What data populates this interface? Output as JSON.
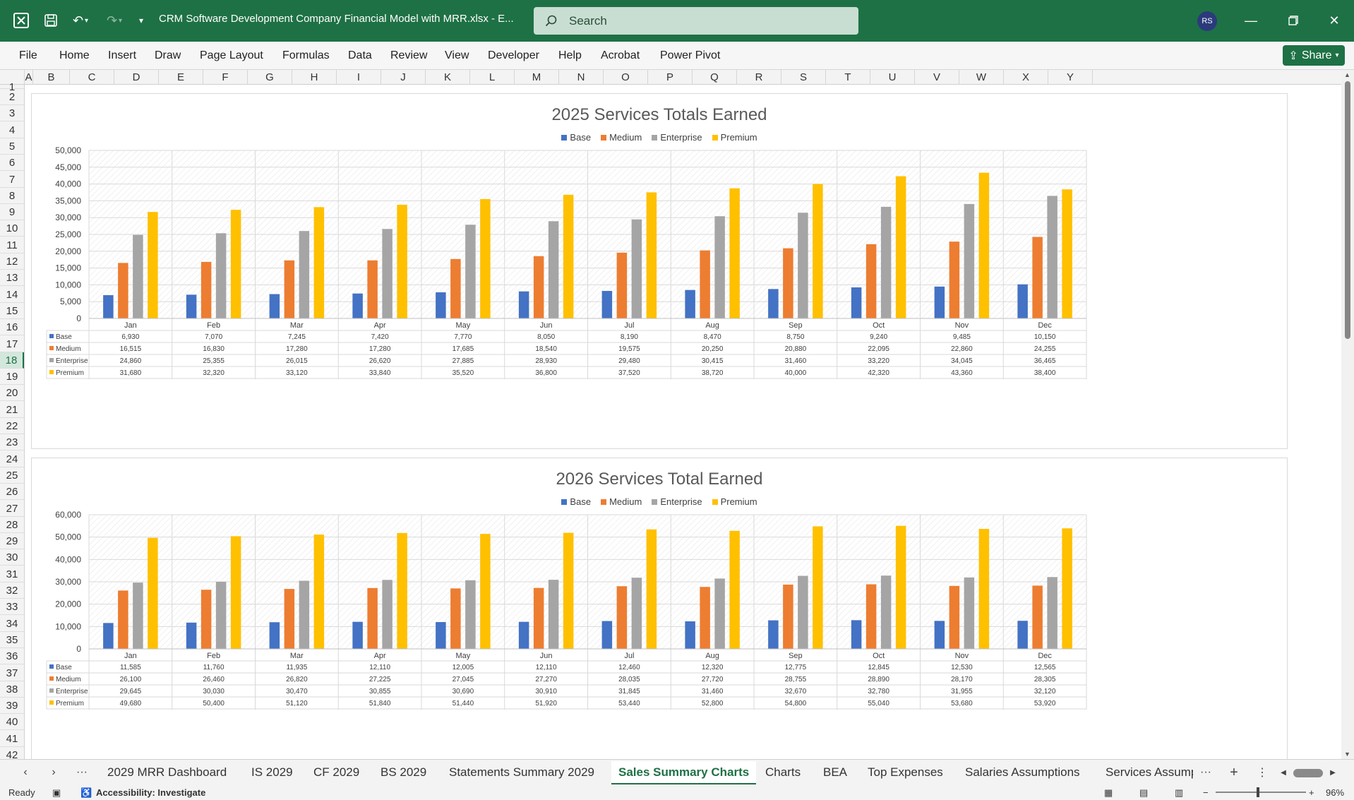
{
  "titlebar": {
    "document_title": "CRM Software Development Company Financial Model with MRR.xlsx  -  E...",
    "search_placeholder": "Search",
    "user_initials": "RS"
  },
  "ribbon": {
    "tabs": [
      "File",
      "Home",
      "Insert",
      "Draw",
      "Page Layout",
      "Formulas",
      "Data",
      "Review",
      "View",
      "Developer",
      "Help",
      "Acrobat",
      "Power Pivot"
    ],
    "share_label": "Share"
  },
  "grid": {
    "columns": [
      "A",
      "B",
      "C",
      "D",
      "E",
      "F",
      "G",
      "H",
      "I",
      "J",
      "K",
      "L",
      "M",
      "N",
      "O",
      "P",
      "Q",
      "R",
      "S",
      "T",
      "U",
      "V",
      "W",
      "X",
      "Y"
    ],
    "rows": [
      "1",
      "2",
      "3",
      "4",
      "5",
      "6",
      "7",
      "8",
      "9",
      "10",
      "11",
      "12",
      "13",
      "14",
      "15",
      "16",
      "17",
      "18",
      "19",
      "20",
      "21",
      "22",
      "23",
      "24",
      "25",
      "26",
      "27",
      "28",
      "29",
      "30",
      "31",
      "32",
      "33",
      "34",
      "35",
      "36",
      "37",
      "38",
      "39",
      "40",
      "41",
      "42"
    ],
    "selected_row": "18"
  },
  "colors": {
    "excel_green": "#1e7145",
    "base": "#4472c4",
    "medium": "#ed7d31",
    "enterprise": "#a5a5a5",
    "premium": "#ffc000"
  },
  "chart_data": [
    {
      "type": "bar",
      "title": "2025 Services Totals Earned",
      "categories": [
        "Jan",
        "Feb",
        "Mar",
        "Apr",
        "May",
        "Jun",
        "Jul",
        "Aug",
        "Sep",
        "Oct",
        "Nov",
        "Dec"
      ],
      "ylim": [
        0,
        50000
      ],
      "yticks": [
        "0",
        "5,000",
        "10,000",
        "15,000",
        "20,000",
        "25,000",
        "30,000",
        "35,000",
        "40,000",
        "45,000",
        "50,000"
      ],
      "legend_position": "top",
      "series": [
        {
          "name": "Base",
          "values": [
            6930,
            7070,
            7245,
            7420,
            7770,
            8050,
            8190,
            8470,
            8750,
            9240,
            9485,
            10150
          ],
          "labels": [
            "6,930",
            "7,070",
            "7,245",
            "7,420",
            "7,770",
            "8,050",
            "8,190",
            "8,470",
            "8,750",
            "9,240",
            "9,485",
            "10,150"
          ]
        },
        {
          "name": "Medium",
          "values": [
            16515,
            16830,
            17280,
            17280,
            17685,
            18540,
            19575,
            20250,
            20880,
            22095,
            22860,
            24255
          ],
          "labels": [
            "16,515",
            "16,830",
            "17,280",
            "17,280",
            "17,685",
            "18,540",
            "19,575",
            "20,250",
            "20,880",
            "22,095",
            "22,860",
            "24,255"
          ]
        },
        {
          "name": "Enterprise",
          "values": [
            24860,
            25355,
            26015,
            26620,
            27885,
            28930,
            29480,
            30415,
            31460,
            33220,
            34045,
            36465
          ],
          "labels": [
            "24,860",
            "25,355",
            "26,015",
            "26,620",
            "27,885",
            "28,930",
            "29,480",
            "30,415",
            "31,460",
            "33,220",
            "34,045",
            "36,465"
          ]
        },
        {
          "name": "Premium",
          "values": [
            31680,
            32320,
            33120,
            33840,
            35520,
            36800,
            37520,
            38720,
            40000,
            42320,
            43360,
            38400
          ],
          "labels": [
            "31,680",
            "32,320",
            "33,120",
            "33,840",
            "35,520",
            "36,800",
            "37,520",
            "38,720",
            "40,000",
            "42,320",
            "43,360",
            "38,400"
          ]
        }
      ]
    },
    {
      "type": "bar",
      "title": "2026 Services Total Earned",
      "categories": [
        "Jan",
        "Feb",
        "Mar",
        "Apr",
        "May",
        "Jun",
        "Jul",
        "Aug",
        "Sep",
        "Oct",
        "Nov",
        "Dec"
      ],
      "ylim": [
        0,
        60000
      ],
      "yticks": [
        "0",
        "10,000",
        "20,000",
        "30,000",
        "40,000",
        "50,000",
        "60,000"
      ],
      "legend_position": "top",
      "series": [
        {
          "name": "Base",
          "values": [
            11585,
            11760,
            11935,
            12110,
            12005,
            12110,
            12460,
            12320,
            12775,
            12845,
            12530,
            12565
          ],
          "labels": [
            "11,585",
            "11,760",
            "11,935",
            "12,110",
            "12,005",
            "12,110",
            "12,460",
            "12,320",
            "12,775",
            "12,845",
            "12,530",
            "12,565"
          ]
        },
        {
          "name": "Medium",
          "values": [
            26100,
            26460,
            26820,
            27225,
            27045,
            27270,
            28035,
            27720,
            28755,
            28890,
            28170,
            28305
          ],
          "labels": [
            "26,100",
            "26,460",
            "26,820",
            "27,225",
            "27,045",
            "27,270",
            "28,035",
            "27,720",
            "28,755",
            "28,890",
            "28,170",
            "28,305"
          ]
        },
        {
          "name": "Enterprise",
          "values": [
            29645,
            30030,
            30470,
            30855,
            30690,
            30910,
            31845,
            31460,
            32670,
            32780,
            31955,
            32120
          ],
          "labels": [
            "29,645",
            "30,030",
            "30,470",
            "30,855",
            "30,690",
            "30,910",
            "31,845",
            "31,460",
            "32,670",
            "32,780",
            "31,955",
            "32,120"
          ]
        },
        {
          "name": "Premium",
          "values": [
            49680,
            50400,
            51120,
            51840,
            51440,
            51920,
            53440,
            52800,
            54800,
            55040,
            53680,
            53920
          ],
          "labels": [
            "49,680",
            "50,400",
            "51,120",
            "51,840",
            "51,440",
            "51,920",
            "53,440",
            "52,800",
            "54,800",
            "55,040",
            "53,680",
            "53,920"
          ]
        }
      ]
    }
  ],
  "sheet_tabs": {
    "tabs": [
      "2029 MRR Dashboard",
      "IS 2029",
      "CF 2029",
      "BS 2029",
      "Statements Summary 2029",
      "Sales Summary Charts",
      "Charts",
      "BEA",
      "Top Expenses",
      "Salaries Assumptions",
      "Services Assump"
    ],
    "active": "Sales Summary Charts"
  },
  "statusbar": {
    "ready": "Ready",
    "accessibility": "Accessibility: Investigate",
    "zoom": "96%"
  }
}
